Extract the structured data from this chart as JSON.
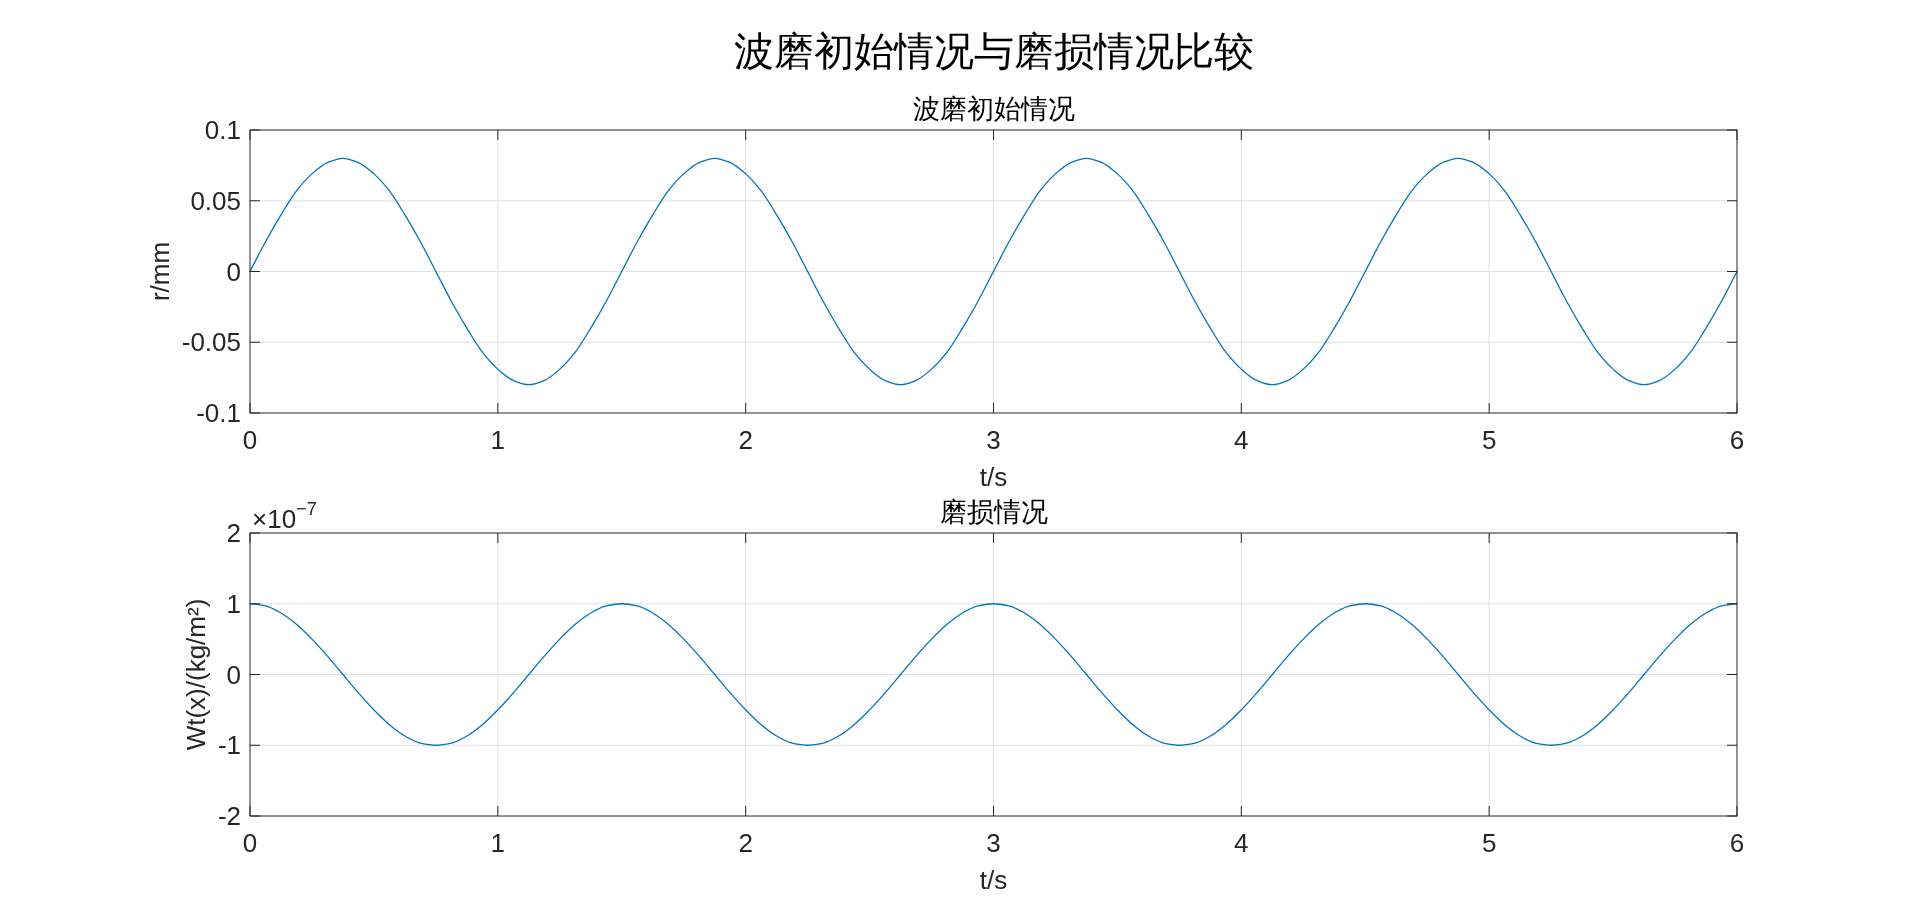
{
  "chart_data": [
    {
      "type": "line",
      "title": "波磨初始情况与磨损情况比较",
      "subtitle": "波磨初始情况",
      "xlabel": "t/s",
      "ylabel": "r/mm",
      "x": [
        0,
        0.0625,
        0.125,
        0.1875,
        0.25,
        0.3125,
        0.375,
        0.4375,
        0.5,
        0.5625,
        0.625,
        0.6875,
        0.75,
        0.8125,
        0.875,
        0.9375,
        1,
        1.0625,
        1.125,
        1.1875,
        1.25,
        1.3125,
        1.375,
        1.4375,
        1.5,
        1.5625,
        1.625,
        1.6875,
        1.75,
        1.8125,
        1.875,
        1.9375,
        2,
        2.0625,
        2.125,
        2.1875,
        2.25,
        2.3125,
        2.375,
        2.4375,
        2.5,
        2.5625,
        2.625,
        2.6875,
        2.75,
        2.8125,
        2.875,
        2.9375,
        3,
        3.0625,
        3.125,
        3.1875,
        3.25,
        3.3125,
        3.375,
        3.4375,
        3.5,
        3.5625,
        3.625,
        3.6875,
        3.75,
        3.8125,
        3.875,
        3.9375,
        4,
        4.0625,
        4.125,
        4.1875,
        4.25,
        4.3125,
        4.375,
        4.4375,
        4.5,
        4.5625,
        4.625,
        4.6875,
        4.75,
        4.8125,
        4.875,
        4.9375,
        5,
        5.0625,
        5.125,
        5.1875,
        5.25,
        5.3125,
        5.375,
        5.4375,
        5.5,
        5.5625,
        5.625,
        5.6875,
        5.75,
        5.8125,
        5.875,
        5.9375,
        6
      ],
      "series": [
        {
          "color": "#0072bd",
          "values": [
            0,
            0.021,
            0.04,
            0.057,
            0.069,
            0.077,
            0.08,
            0.077,
            0.069,
            0.057,
            0.04,
            0.021,
            0,
            -0.021,
            -0.04,
            -0.057,
            -0.069,
            -0.077,
            -0.08,
            -0.077,
            -0.069,
            -0.057,
            -0.04,
            -0.021,
            0,
            0.021,
            0.04,
            0.057,
            0.069,
            0.077,
            0.08,
            0.077,
            0.069,
            0.057,
            0.04,
            0.021,
            0,
            -0.021,
            -0.04,
            -0.057,
            -0.069,
            -0.077,
            -0.08,
            -0.077,
            -0.069,
            -0.057,
            -0.04,
            -0.021,
            0,
            0.021,
            0.04,
            0.057,
            0.069,
            0.077,
            0.08,
            0.077,
            0.069,
            0.057,
            0.04,
            0.021,
            0,
            -0.021,
            -0.04,
            -0.057,
            -0.069,
            -0.077,
            -0.08,
            -0.077,
            -0.069,
            -0.057,
            -0.04,
            -0.021,
            0,
            0.021,
            0.04,
            0.057,
            0.069,
            0.077,
            0.08,
            0.077,
            0.069,
            0.057,
            0.04,
            0.021,
            0,
            -0.021,
            -0.04,
            -0.057,
            -0.069,
            -0.077,
            -0.08,
            -0.077,
            -0.069,
            -0.057,
            -0.04,
            -0.021,
            0
          ]
        }
      ],
      "xlim": [
        0,
        6
      ],
      "ylim": [
        -0.1,
        0.1
      ],
      "xticks": [
        0,
        1,
        2,
        3,
        4,
        5,
        6
      ],
      "yticks": [
        -0.1,
        -0.05,
        0,
        0.05,
        0.1
      ],
      "grid": true
    },
    {
      "type": "line",
      "title": "磨损情况",
      "xlabel": "t/s",
      "ylabel": "Wt(x)/(kg/m²)",
      "annotations": [
        "×10$^{−7}$"
      ],
      "x": [
        0,
        0.0625,
        0.125,
        0.1875,
        0.25,
        0.3125,
        0.375,
        0.4375,
        0.5,
        0.5625,
        0.625,
        0.6875,
        0.75,
        0.8125,
        0.875,
        0.9375,
        1,
        1.0625,
        1.125,
        1.1875,
        1.25,
        1.3125,
        1.375,
        1.4375,
        1.5,
        1.5625,
        1.625,
        1.6875,
        1.75,
        1.8125,
        1.875,
        1.9375,
        2,
        2.0625,
        2.125,
        2.1875,
        2.25,
        2.3125,
        2.375,
        2.4375,
        2.5,
        2.5625,
        2.625,
        2.6875,
        2.75,
        2.8125,
        2.875,
        2.9375,
        3,
        3.0625,
        3.125,
        3.1875,
        3.25,
        3.3125,
        3.375,
        3.4375,
        3.5,
        3.5625,
        3.625,
        3.6875,
        3.75,
        3.8125,
        3.875,
        3.9375,
        4,
        4.0625,
        4.125,
        4.1875,
        4.25,
        4.3125,
        4.375,
        4.4375,
        4.5,
        4.5625,
        4.625,
        4.6875,
        4.75,
        4.8125,
        4.875,
        4.9375,
        5,
        5.0625,
        5.125,
        5.1875,
        5.25,
        5.3125,
        5.375,
        5.4375,
        5.5,
        5.5625,
        5.625,
        5.6875,
        5.75,
        5.8125,
        5.875,
        5.9375,
        6
      ],
      "series": [
        {
          "color": "#0072bd",
          "values": [
            1,
            0.97,
            0.87,
            0.71,
            0.5,
            0.26,
            0,
            -0.26,
            -0.5,
            -0.71,
            -0.87,
            -0.97,
            -1,
            -0.97,
            -0.87,
            -0.71,
            -0.5,
            -0.26,
            0,
            0.26,
            0.5,
            0.71,
            0.87,
            0.97,
            1,
            0.97,
            0.87,
            0.71,
            0.5,
            0.26,
            0,
            -0.26,
            -0.5,
            -0.71,
            -0.87,
            -0.97,
            -1,
            -0.97,
            -0.87,
            -0.71,
            -0.5,
            -0.26,
            0,
            0.26,
            0.5,
            0.71,
            0.87,
            0.97,
            1,
            0.97,
            0.87,
            0.71,
            0.5,
            0.26,
            0,
            -0.26,
            -0.5,
            -0.71,
            -0.87,
            -0.97,
            -1,
            -0.97,
            -0.87,
            -0.71,
            -0.5,
            -0.26,
            0,
            0.26,
            0.5,
            0.71,
            0.87,
            0.97,
            1,
            0.97,
            0.87,
            0.71,
            0.5,
            0.26,
            0,
            -0.26,
            -0.5,
            -0.71,
            -0.87,
            -0.97,
            -1,
            -0.97,
            -0.87,
            -0.71,
            -0.5,
            -0.26,
            0,
            0.26,
            0.5,
            0.71,
            0.87,
            0.97,
            1
          ]
        }
      ],
      "xlim": [
        0,
        6
      ],
      "ylim": [
        -2,
        2
      ],
      "xticks": [
        0,
        1,
        2,
        3,
        4,
        5,
        6
      ],
      "yticks": [
        -2,
        -1,
        0,
        1,
        2
      ],
      "grid": true
    }
  ]
}
